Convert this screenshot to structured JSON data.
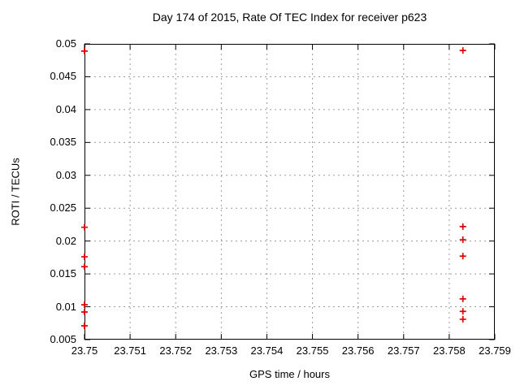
{
  "chart_data": {
    "type": "scatter",
    "title": "Day 174 of 2015, Rate Of TEC Index for receiver p623",
    "xlabel": "GPS time / hours",
    "ylabel": "ROTI / TECUs",
    "xlim": [
      23.75,
      23.759
    ],
    "ylim": [
      0.005,
      0.05
    ],
    "xticks": [
      23.75,
      23.751,
      23.752,
      23.753,
      23.754,
      23.755,
      23.756,
      23.757,
      23.758,
      23.759
    ],
    "xtick_labels": [
      "23.75",
      "23.751",
      "23.752",
      "23.753",
      "23.754",
      "23.755",
      "23.756",
      "23.757",
      "23.758",
      "23.759"
    ],
    "yticks": [
      0.005,
      0.01,
      0.015,
      0.02,
      0.025,
      0.03,
      0.035,
      0.04,
      0.045,
      0.05
    ],
    "ytick_labels": [
      "0.005",
      "0.01",
      "0.015",
      "0.02",
      "0.025",
      "0.03",
      "0.035",
      "0.04",
      "0.045",
      "0.05"
    ],
    "grid": true,
    "legend_visible": false,
    "marker": "plus",
    "colors": {
      "marker": "#dd0000",
      "grid": "#9b9b9b",
      "border": "#000000",
      "background": "#ffffff",
      "text": "#000000"
    },
    "series": [
      {
        "name": "ROTI",
        "points": [
          [
            23.75,
            0.0489
          ],
          [
            23.75,
            0.0221
          ],
          [
            23.75,
            0.0176
          ],
          [
            23.75,
            0.0161
          ],
          [
            23.75,
            0.0103
          ],
          [
            23.75,
            0.0092
          ],
          [
            23.75,
            0.0071
          ],
          [
            23.7583,
            0.049
          ],
          [
            23.7583,
            0.0222
          ],
          [
            23.7583,
            0.0202
          ],
          [
            23.7583,
            0.0177
          ],
          [
            23.7583,
            0.0112
          ],
          [
            23.7583,
            0.0093
          ],
          [
            23.7583,
            0.0081
          ]
        ]
      }
    ]
  }
}
